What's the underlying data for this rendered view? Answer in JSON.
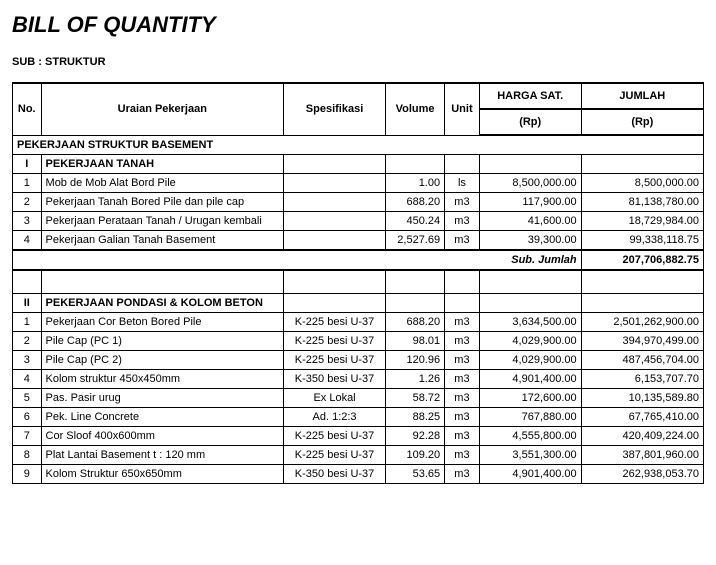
{
  "title": "BILL OF QUANTITY",
  "sub_label": "SUB",
  "sub_value": ": STRUKTUR",
  "headers": {
    "no": "No.",
    "desc": "Uraian Pekerjaan",
    "spec": "Spesifikasi",
    "vol": "Volume",
    "unit": "Unit",
    "price1": "HARGA SAT.",
    "price2": "(Rp)",
    "total1": "JUMLAH",
    "total2": "(Rp)"
  },
  "section_header": "PEKERJAAN STRUKTUR BASEMENT",
  "group1": {
    "no": "I",
    "name": "PEKERJAAN TANAH"
  },
  "rows1": [
    {
      "no": "1",
      "desc": "Mob de Mob Alat Bord Pile",
      "spec": "",
      "vol": "1.00",
      "unit": "ls",
      "price": "8,500,000.00",
      "total": "8,500,000.00"
    },
    {
      "no": "2",
      "desc": "Pekerjaan Tanah Bored Pile dan pile cap",
      "spec": "",
      "vol": "688.20",
      "unit": "m3",
      "price": "117,900.00",
      "total": "81,138,780.00"
    },
    {
      "no": "3",
      "desc": "Pekerjaan Perataan Tanah / Urugan kembali",
      "spec": "",
      "vol": "450.24",
      "unit": "m3",
      "price": "41,600.00",
      "total": "18,729,984.00"
    },
    {
      "no": "4",
      "desc": "Pekerjaan Galian Tanah Basement",
      "spec": "",
      "vol": "2,527.69",
      "unit": "m3",
      "price": "39,300.00",
      "total": "99,338,118.75"
    }
  ],
  "subtotal1": {
    "label": "Sub. Jumlah",
    "value": "207,706,882.75"
  },
  "group2": {
    "no": "II",
    "name": "PEKERJAAN PONDASI & KOLOM BETON"
  },
  "rows2": [
    {
      "no": "1",
      "desc": "Pekerjaan Cor Beton Bored Pile",
      "spec": "K-225 besi U-37",
      "vol": "688.20",
      "unit": "m3",
      "price": "3,634,500.00",
      "total": "2,501,262,900.00"
    },
    {
      "no": "2",
      "desc": "Pile Cap (PC 1)",
      "spec": "K-225 besi U-37",
      "vol": "98.01",
      "unit": "m3",
      "price": "4,029,900.00",
      "total": "394,970,499.00"
    },
    {
      "no": "3",
      "desc": "Pile Cap (PC 2)",
      "spec": "K-225 besi U-37",
      "vol": "120.96",
      "unit": "m3",
      "price": "4,029,900.00",
      "total": "487,456,704.00"
    },
    {
      "no": "4",
      "desc": "Kolom  struktur 450x450mm",
      "spec": "K-350 besi U-37",
      "vol": "1.26",
      "unit": "m3",
      "price": "4,901,400.00",
      "total": "6,153,707.70"
    },
    {
      "no": "5",
      "desc": "Pas. Pasir urug",
      "spec": "Ex Lokal",
      "vol": "58.72",
      "unit": "m3",
      "price": "172,600.00",
      "total": "10,135,589.80"
    },
    {
      "no": "6",
      "desc": "Pek. Line Concrete",
      "spec": "Ad. 1:2:3",
      "vol": "88.25",
      "unit": "m3",
      "price": "767,880.00",
      "total": "67,765,410.00"
    },
    {
      "no": "7",
      "desc": "Cor Sloof 400x600mm",
      "spec": "K-225 besi U-37",
      "vol": "92.28",
      "unit": "m3",
      "price": "4,555,800.00",
      "total": "420,409,224.00"
    },
    {
      "no": "8",
      "desc": "Plat Lantai Basement t : 120 mm",
      "spec": "K-225 besi U-37",
      "vol": "109.20",
      "unit": "m3",
      "price": "3,551,300.00",
      "total": "387,801,960.00"
    },
    {
      "no": "9",
      "desc": "Kolom Struktur 650x650mm",
      "spec": "K-350 besi U-37",
      "vol": "53.65",
      "unit": "m3",
      "price": "4,901,400.00",
      "total": "262,938,053.70"
    }
  ]
}
